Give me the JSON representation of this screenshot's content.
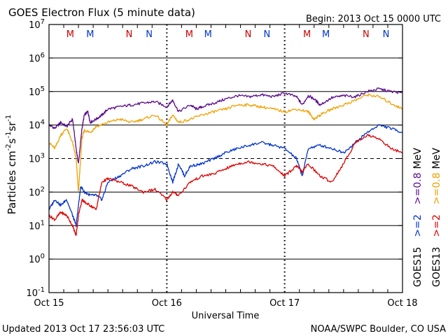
{
  "chart_data": {
    "type": "line",
    "title": "GOES Electron Flux (5 minute data)",
    "begin": "Begin: 2013 Oct 15 0000 UTC",
    "xlabel": "Universal Time",
    "ylabel": "Particles cm",
    "ylabel_parts": [
      "Particles cm",
      "-2",
      "s",
      "-1",
      "sr",
      "-1"
    ],
    "x_ticks": [
      "Oct 15",
      "Oct 16",
      "Oct 17",
      "Oct 18"
    ],
    "x_range_days": [
      0,
      3
    ],
    "y_scale": "log",
    "y_range": [
      0.1,
      10000000
    ],
    "y_ticks": [
      {
        "base": "10",
        "exp": "7"
      },
      {
        "base": "10",
        "exp": "6"
      },
      {
        "base": "10",
        "exp": "5"
      },
      {
        "base": "10",
        "exp": "4"
      },
      {
        "base": "10",
        "exp": "3"
      },
      {
        "base": "10",
        "exp": "2"
      },
      {
        "base": "10",
        "exp": "1"
      },
      {
        "base": "10",
        "exp": "0"
      },
      {
        "base": "10",
        "exp": "-1"
      }
    ],
    "threshold_dashed": 1000,
    "mn_markers": [
      {
        "label": "M",
        "day": 0.18,
        "color": "#cc0000"
      },
      {
        "label": "M",
        "day": 0.35,
        "color": "#0033cc"
      },
      {
        "label": "N",
        "day": 0.68,
        "color": "#cc0000"
      },
      {
        "label": "N",
        "day": 0.85,
        "color": "#0033cc"
      },
      {
        "label": "M",
        "day": 1.19,
        "color": "#cc0000"
      },
      {
        "label": "M",
        "day": 1.35,
        "color": "#0033cc"
      },
      {
        "label": "N",
        "day": 1.69,
        "color": "#cc0000"
      },
      {
        "label": "N",
        "day": 1.85,
        "color": "#0033cc"
      },
      {
        "label": "M",
        "day": 2.19,
        "color": "#cc0000"
      },
      {
        "label": "M",
        "day": 2.35,
        "color": "#0033cc"
      },
      {
        "label": "N",
        "day": 2.69,
        "color": "#cc0000"
      },
      {
        "label": "N",
        "day": 2.86,
        "color": "#0033cc"
      }
    ],
    "legend": [
      {
        "sat": "GOES15",
        "items": [
          {
            "text": ">=2",
            "color": "#0033cc"
          },
          {
            "text": ">=0.8",
            "color": "#5a0a8c"
          }
        ]
      },
      {
        "sat": "GOES13",
        "items": [
          {
            "text": ">=2",
            "color": "#dd0000"
          },
          {
            "text": ">=0.8",
            "color": "#f2a000"
          }
        ]
      }
    ],
    "legend_unit": "MeV",
    "series": [
      {
        "name": "GOES15 >=0.8 MeV",
        "color": "#5a0a8c",
        "x": [
          0,
          0.05,
          0.1,
          0.15,
          0.2,
          0.23,
          0.25,
          0.28,
          0.3,
          0.33,
          0.35,
          0.4,
          0.45,
          0.5,
          0.6,
          0.7,
          0.8,
          0.9,
          1.0,
          1.05,
          1.1,
          1.2,
          1.25,
          1.3,
          1.4,
          1.5,
          1.6,
          1.7,
          1.8,
          1.9,
          2.0,
          2.1,
          2.15,
          2.2,
          2.25,
          2.3,
          2.4,
          2.5,
          2.6,
          2.7,
          2.8,
          2.9,
          3.0
        ],
        "y": [
          10000,
          8000,
          12000,
          9000,
          15000,
          2000,
          700,
          8000,
          20000,
          25000,
          12000,
          15000,
          20000,
          30000,
          35000,
          40000,
          45000,
          50000,
          35000,
          55000,
          25000,
          40000,
          30000,
          35000,
          45000,
          60000,
          75000,
          70000,
          80000,
          70000,
          90000,
          70000,
          40000,
          75000,
          60000,
          40000,
          65000,
          75000,
          70000,
          100000,
          120000,
          100000,
          90000
        ]
      },
      {
        "name": "GOES13 >=0.8 MeV",
        "color": "#f2a000",
        "x": [
          0,
          0.05,
          0.1,
          0.15,
          0.2,
          0.23,
          0.25,
          0.28,
          0.3,
          0.35,
          0.4,
          0.5,
          0.6,
          0.7,
          0.8,
          0.9,
          1.0,
          1.05,
          1.1,
          1.2,
          1.3,
          1.4,
          1.5,
          1.6,
          1.7,
          1.8,
          1.9,
          2.0,
          2.1,
          2.2,
          2.25,
          2.3,
          2.4,
          2.5,
          2.6,
          2.7,
          2.8,
          2.9,
          3.0
        ],
        "y": [
          3000,
          2000,
          5000,
          8000,
          3000,
          1000,
          100,
          4000,
          7000,
          6000,
          9000,
          12000,
          15000,
          12000,
          15000,
          20000,
          10000,
          20000,
          12000,
          15000,
          20000,
          25000,
          30000,
          40000,
          40000,
          35000,
          30000,
          25000,
          30000,
          25000,
          15000,
          20000,
          30000,
          40000,
          55000,
          80000,
          70000,
          45000,
          30000
        ]
      },
      {
        "name": "GOES15 >=2 MeV",
        "color": "#0033cc",
        "x": [
          0,
          0.05,
          0.1,
          0.15,
          0.2,
          0.23,
          0.25,
          0.27,
          0.3,
          0.35,
          0.4,
          0.45,
          0.5,
          0.6,
          0.7,
          0.8,
          0.9,
          1.0,
          1.05,
          1.1,
          1.15,
          1.2,
          1.3,
          1.4,
          1.5,
          1.6,
          1.7,
          1.8,
          1.9,
          2.0,
          2.1,
          2.15,
          2.2,
          2.3,
          2.4,
          2.5,
          2.6,
          2.7,
          2.8,
          2.9,
          3.0
        ],
        "y": [
          30,
          60,
          40,
          60,
          20,
          10,
          40,
          150,
          100,
          80,
          80,
          60,
          200,
          300,
          500,
          600,
          800,
          700,
          200,
          700,
          300,
          600,
          700,
          1000,
          1500,
          2000,
          2500,
          3000,
          2500,
          2000,
          1000,
          300,
          2000,
          2500,
          2000,
          1500,
          3000,
          6000,
          10000,
          8000,
          6000
        ]
      },
      {
        "name": "GOES13 >=2 MeV",
        "color": "#dd0000",
        "x": [
          0,
          0.05,
          0.1,
          0.15,
          0.2,
          0.23,
          0.25,
          0.28,
          0.3,
          0.35,
          0.4,
          0.45,
          0.5,
          0.6,
          0.7,
          0.8,
          0.9,
          1.0,
          1.05,
          1.1,
          1.2,
          1.3,
          1.4,
          1.5,
          1.6,
          1.7,
          1.8,
          1.9,
          2.0,
          2.1,
          2.15,
          2.2,
          2.3,
          2.4,
          2.5,
          2.6,
          2.7,
          2.8,
          2.9,
          3.0
        ],
        "y": [
          20,
          15,
          25,
          20,
          10,
          5,
          20,
          60,
          50,
          40,
          30,
          200,
          250,
          200,
          150,
          100,
          120,
          60,
          100,
          80,
          200,
          300,
          350,
          500,
          700,
          800,
          700,
          600,
          300,
          600,
          400,
          700,
          300,
          200,
          700,
          3000,
          5000,
          4000,
          2000,
          1500
        ]
      }
    ]
  },
  "footer": {
    "updated": "Updated 2013 Oct 17 23:56:03 UTC",
    "source": "NOAA/SWPC Boulder, CO USA"
  }
}
